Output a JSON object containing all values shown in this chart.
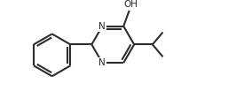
{
  "line_color": "#2d2d2d",
  "bg_color": "#ffffff",
  "lw": 1.5,
  "figsize": [
    2.66,
    1.2
  ],
  "dpi": 100,
  "xlim": [
    0.0,
    10.5
  ],
  "ylim": [
    0.5,
    5.0
  ]
}
